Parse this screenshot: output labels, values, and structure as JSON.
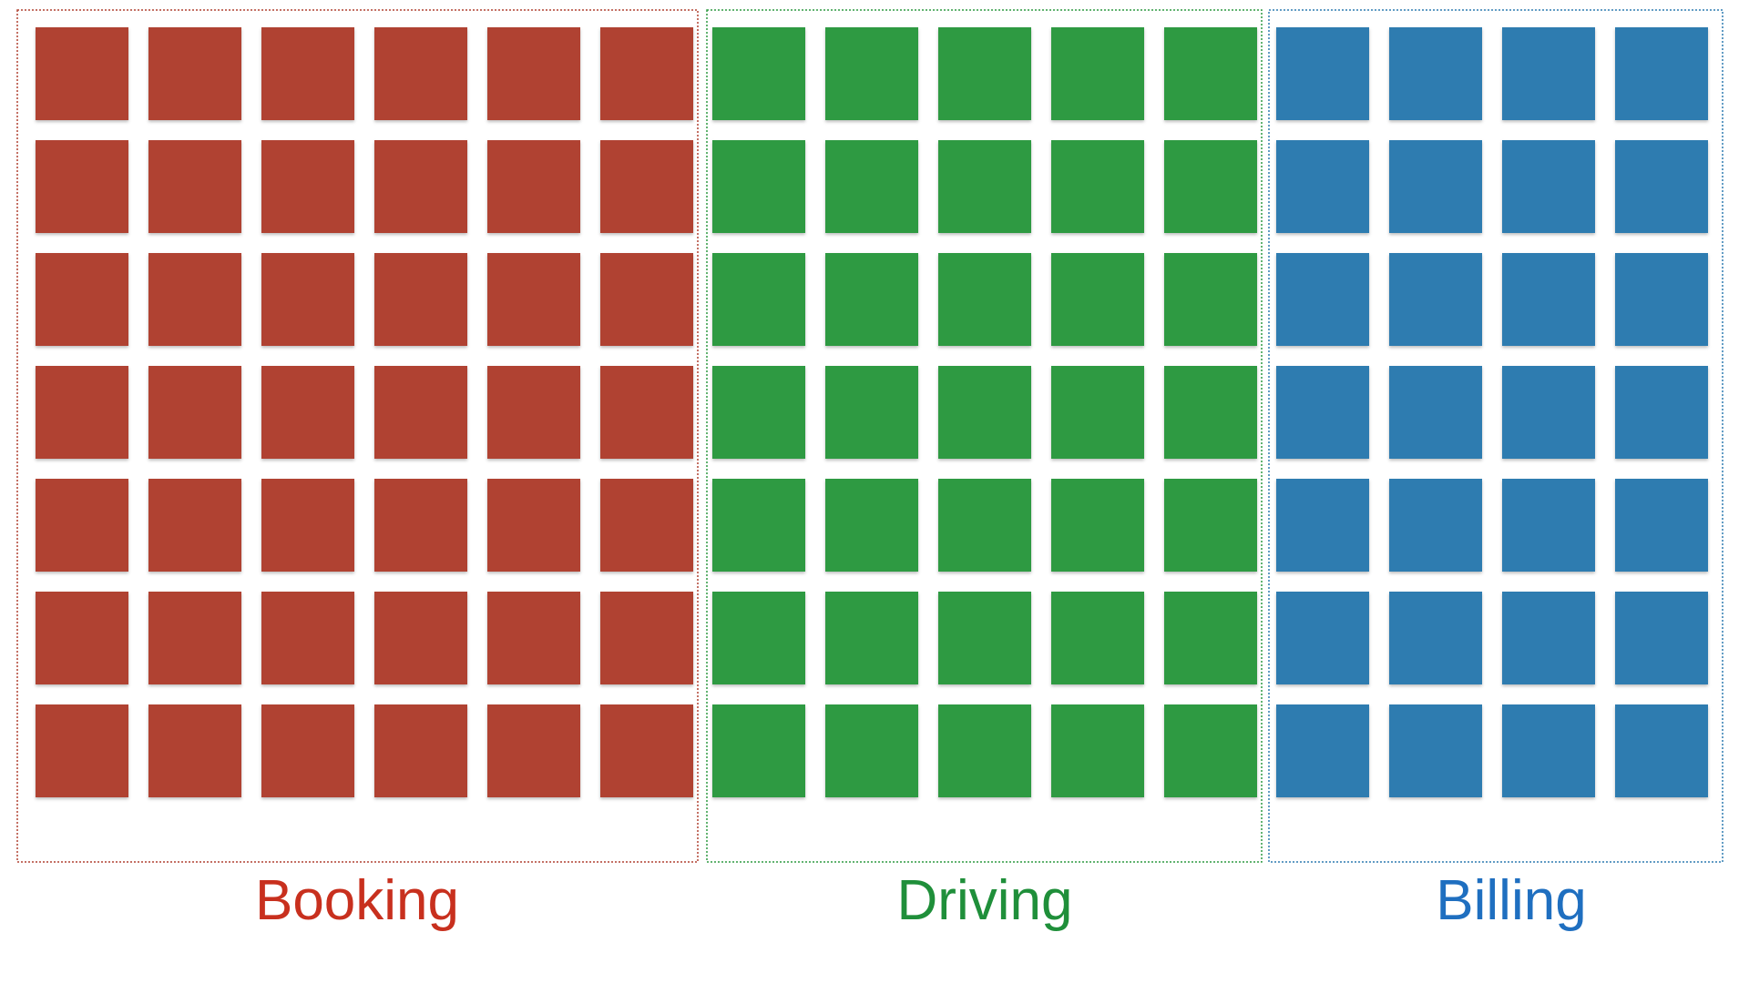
{
  "groups": [
    {
      "label": "Booking",
      "columns": 6,
      "rows": 7,
      "color": "#b04232",
      "label_color": "#c8301e"
    },
    {
      "label": "Driving",
      "columns": 5,
      "rows": 7,
      "color": "#2f9a42",
      "label_color": "#1f8f3a"
    },
    {
      "label": "Billing",
      "columns": 4,
      "rows": 7,
      "color": "#2e7bb0",
      "label_color": "#1f6fc0"
    }
  ]
}
